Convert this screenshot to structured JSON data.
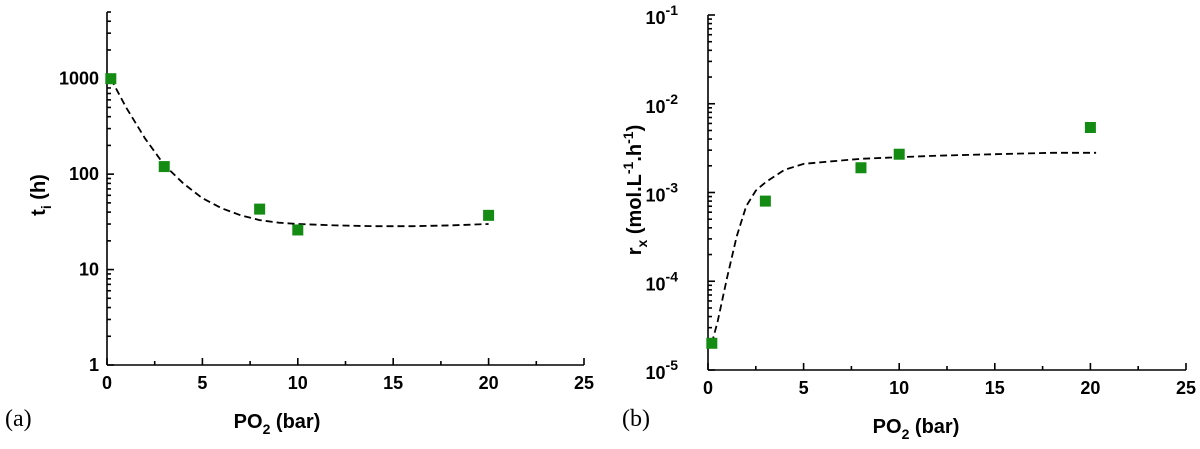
{
  "chart_data": [
    {
      "type": "scatter",
      "panel_label": "(a)",
      "xlabel_main": "PO",
      "xlabel_sub": "2",
      "xlabel_rest": " (bar)",
      "ylabel_main": "t",
      "ylabel_sub": "i",
      "ylabel_rest": " (h)",
      "xlim": [
        0,
        25
      ],
      "ylim": [
        1,
        5000
      ],
      "y_scale": "log",
      "x_ticks": [
        "0",
        "5",
        "10",
        "15",
        "20",
        "25"
      ],
      "y_ticks": [
        "1",
        "10",
        "100",
        "1000"
      ],
      "marker_color": "#148c14",
      "series": [
        {
          "x": [
            0.2,
            3,
            8,
            10,
            20
          ],
          "y": [
            1000,
            120,
            43,
            26,
            37
          ]
        }
      ],
      "fit": {
        "x": [
          0.2,
          1,
          2,
          3,
          4,
          5,
          6,
          7,
          8,
          9,
          10,
          12,
          14,
          16,
          18,
          20
        ],
        "y": [
          1000,
          500,
          235,
          125,
          80,
          56,
          44,
          37,
          33,
          31,
          30,
          29,
          28.5,
          28.5,
          29,
          30
        ]
      }
    },
    {
      "type": "scatter",
      "panel_label": "(b)",
      "xlabel_main": "PO",
      "xlabel_sub": "2",
      "xlabel_rest": " (bar)",
      "ylabel_parts": [
        "r",
        "x",
        " (mol.L",
        "-1",
        ".h",
        "-1",
        ")"
      ],
      "xlim": [
        0,
        25
      ],
      "ylim": [
        1e-05,
        0.1
      ],
      "y_scale": "log",
      "x_ticks": [
        "0",
        "5",
        "10",
        "15",
        "20",
        "25"
      ],
      "y_tick_exponents": [
        "-5",
        "-4",
        "-3",
        "-2",
        "-1"
      ],
      "y_tick_base": "10",
      "marker_color": "#148c14",
      "series": [
        {
          "x": [
            0.2,
            3,
            8,
            10,
            20
          ],
          "y": [
            2e-05,
            0.0008,
            0.0019,
            0.0027,
            0.0054
          ]
        }
      ],
      "fit": {
        "x": [
          0.2,
          0.5,
          1,
          1.5,
          2,
          2.5,
          3,
          4,
          5,
          6,
          8,
          10,
          12,
          15,
          18,
          20.3
        ],
        "y": [
          2e-05,
          3.5e-05,
          0.00011,
          0.00032,
          0.0007,
          0.00105,
          0.0013,
          0.0018,
          0.0021,
          0.0022,
          0.0024,
          0.0025,
          0.0026,
          0.0027,
          0.0028,
          0.0028
        ]
      }
    }
  ]
}
